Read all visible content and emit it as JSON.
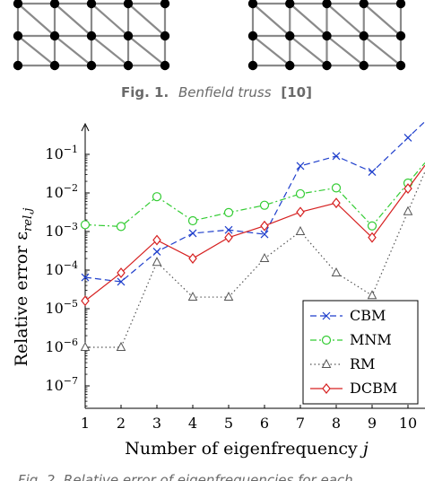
{
  "figure1": {
    "caption_label": "Fig. 1.",
    "caption_text": "Benfield truss",
    "caption_ref": "[10]"
  },
  "figure2": {
    "caption_partial": "Fig. 2.  Relative error of eigenfrequencies for each"
  },
  "chart_data": {
    "type": "line",
    "title": "",
    "xlabel": "Number of eigenfrequency j",
    "ylabel": "Relative error ε_rel,j",
    "y_scale": "log",
    "xlim": [
      1,
      10.5
    ],
    "ylim_exponent": [
      -8,
      0
    ],
    "x_ticks": [
      "1",
      "2",
      "3",
      "4",
      "5",
      "6",
      "7",
      "8",
      "9",
      "10"
    ],
    "y_ticks": [
      "10^-1",
      "10^-2",
      "10^-3",
      "10^-4",
      "10^-5",
      "10^-6",
      "10^-7"
    ],
    "x": [
      1,
      2,
      3,
      4,
      5,
      6,
      7,
      8,
      9,
      10
    ],
    "legend_position": "bottom-right",
    "series": [
      {
        "name": "CBM",
        "color": "#1f3fcc",
        "marker": "x",
        "line": "dashed",
        "values": [
          6.5e-05,
          5e-05,
          0.0003,
          0.0009,
          0.0011,
          0.00085,
          0.05,
          0.09,
          0.035,
          0.27
        ]
      },
      {
        "name": "MNM",
        "color": "#33cc33",
        "marker": "circle",
        "line": "dashdot",
        "values": [
          0.0015,
          0.00135,
          0.008,
          0.0019,
          0.0031,
          0.0048,
          0.0095,
          0.0135,
          0.0014,
          0.018
        ]
      },
      {
        "name": "RM",
        "color": "#555555",
        "marker": "triangle",
        "line": "dotted",
        "values": [
          1e-06,
          1e-06,
          0.00016,
          2e-05,
          2e-05,
          0.0002,
          0.001,
          8.5e-05,
          2.2e-05,
          0.0033
        ]
      },
      {
        "name": "DCBM",
        "color": "#d62020",
        "marker": "diamond",
        "line": "solid",
        "values": [
          1.6e-05,
          8.5e-05,
          0.0006,
          0.0002,
          0.0007,
          0.0014,
          0.0032,
          0.0055,
          0.0007,
          0.013
        ]
      }
    ]
  }
}
